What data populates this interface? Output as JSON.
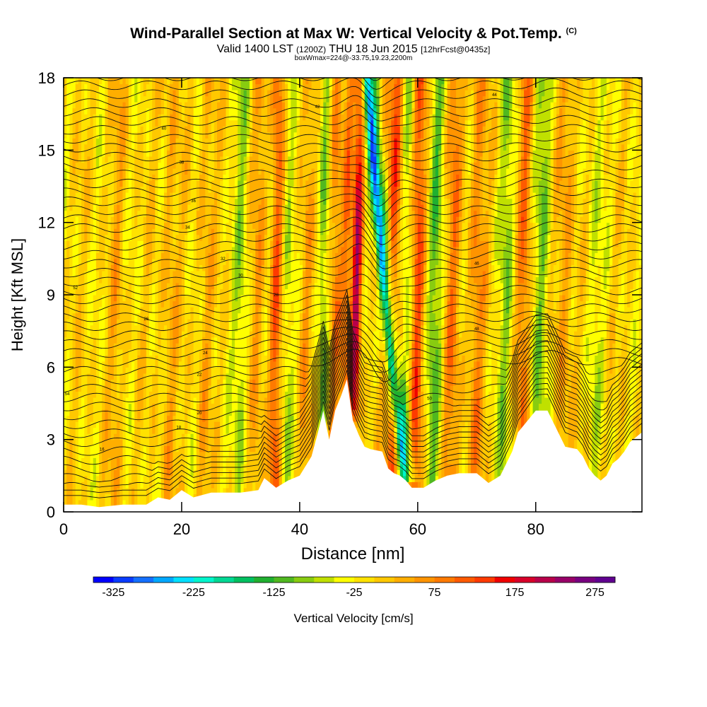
{
  "header": {
    "title": "Wind-Parallel Section at Max W: Vertical Velocity & Pot.Temp.",
    "copyright": "(C)",
    "valid_prefix": "Valid 1400 LST",
    "valid_utc": "(1200Z)",
    "valid_day": "THU 18 Jun 2015",
    "forecast": "[12hrFcst@0435z]",
    "box_info": "boxWmax=224@-33.75,19.23,2200m"
  },
  "chart_data": {
    "type": "heatmap",
    "title": "Wind-Parallel Section at Max W: Vertical Velocity & Pot.Temp.",
    "xlabel": "Distance [nm]",
    "ylabel": "Height [Kft MSL]",
    "xlim": [
      0,
      98
    ],
    "ylim": [
      0,
      18
    ],
    "x_ticks": [
      0,
      20,
      40,
      60,
      80
    ],
    "y_ticks": [
      0,
      3,
      6,
      9,
      12,
      15,
      18
    ],
    "colorbar": {
      "label": "Vertical Velocity [cm/s]",
      "min": -350,
      "max": 300,
      "step": 25,
      "tick_labels": [
        "-325",
        "-225",
        "-125",
        "-25",
        "75",
        "175",
        "275"
      ],
      "colors": [
        "#0000ff",
        "#0a3cff",
        "#1470ff",
        "#00a8ff",
        "#00e0ff",
        "#00f5cc",
        "#00d894",
        "#00c060",
        "#20b030",
        "#50b820",
        "#88cc10",
        "#c0e000",
        "#ffff00",
        "#ffe200",
        "#ffc800",
        "#ffae00",
        "#ff9400",
        "#ff7a00",
        "#ff5a00",
        "#ff3a00",
        "#f00000",
        "#d8002a",
        "#b8004a",
        "#980068",
        "#780080",
        "#600090"
      ]
    },
    "terrain_kft": [
      [
        0,
        0.3
      ],
      [
        3,
        0.3
      ],
      [
        6,
        0.2
      ],
      [
        10,
        0.3
      ],
      [
        14,
        0.3
      ],
      [
        16,
        0.6
      ],
      [
        18,
        0.5
      ],
      [
        20,
        0.9
      ],
      [
        22,
        0.6
      ],
      [
        25,
        0.8
      ],
      [
        30,
        0.8
      ],
      [
        33,
        0.9
      ],
      [
        34,
        1.4
      ],
      [
        36,
        1.0
      ],
      [
        38,
        1.3
      ],
      [
        40,
        1.5
      ],
      [
        42,
        2.3
      ],
      [
        43,
        3.2
      ],
      [
        44,
        4.2
      ],
      [
        45,
        3.0
      ],
      [
        46,
        4.2
      ],
      [
        47,
        4.8
      ],
      [
        48,
        5.5
      ],
      [
        49,
        3.8
      ],
      [
        50,
        3.2
      ],
      [
        51,
        2.7
      ],
      [
        52,
        2.6
      ],
      [
        54,
        2.5
      ],
      [
        55,
        1.8
      ],
      [
        56,
        1.6
      ],
      [
        57,
        1.5
      ],
      [
        58,
        1.3
      ],
      [
        59,
        1.0
      ],
      [
        61,
        1.0
      ],
      [
        63,
        1.3
      ],
      [
        65,
        1.5
      ],
      [
        67,
        1.6
      ],
      [
        70,
        1.6
      ],
      [
        72,
        1.2
      ],
      [
        74,
        1.5
      ],
      [
        76,
        2.5
      ],
      [
        77,
        3.3
      ],
      [
        78,
        3.6
      ],
      [
        80,
        4.2
      ],
      [
        82,
        4.2
      ],
      [
        84,
        3.2
      ],
      [
        85,
        2.7
      ],
      [
        87,
        2.6
      ],
      [
        88,
        2.3
      ],
      [
        89,
        1.8
      ],
      [
        90,
        1.5
      ],
      [
        91,
        1.3
      ],
      [
        92,
        1.5
      ],
      [
        93,
        2.0
      ],
      [
        94,
        2.2
      ],
      [
        95,
        2.5
      ],
      [
        96,
        2.9
      ],
      [
        98,
        3.3
      ]
    ],
    "updraft_axis": {
      "x_at_bottom": 49,
      "x_at_top": 50.3,
      "base_kft": 3.5,
      "peak_cm_s": 224
    },
    "downdraft_axis": {
      "x_at_bottom": 58,
      "x_at_top": 51.5,
      "base_kft": 1.5,
      "min_cm_s": -275
    },
    "theta_contour_labels": [
      {
        "x": 6.5,
        "y": 2.6,
        "text": "16"
      },
      {
        "x": 19.5,
        "y": 3.5,
        "text": "18"
      },
      {
        "x": 23,
        "y": 4.1,
        "text": "20"
      },
      {
        "x": 23,
        "y": 5.7,
        "text": "22"
      },
      {
        "x": 24,
        "y": 6.6,
        "text": "24"
      },
      {
        "x": 14,
        "y": 8.0,
        "text": "26"
      },
      {
        "x": 36,
        "y": 9.0,
        "text": "28"
      },
      {
        "x": 30,
        "y": 9.8,
        "text": "30"
      },
      {
        "x": 27,
        "y": 10.5,
        "text": "32"
      },
      {
        "x": 21,
        "y": 11.8,
        "text": "34"
      },
      {
        "x": 22,
        "y": 12.9,
        "text": "36"
      },
      {
        "x": 20,
        "y": 14.5,
        "text": "38"
      },
      {
        "x": 17,
        "y": 15.9,
        "text": "40"
      },
      {
        "x": 43,
        "y": 16.8,
        "text": "42"
      },
      {
        "x": 73,
        "y": 17.3,
        "text": "44"
      },
      {
        "x": 70,
        "y": 10.3,
        "text": "46"
      },
      {
        "x": 70,
        "y": 7.6,
        "text": "48"
      },
      {
        "x": 62,
        "y": 4.7,
        "text": "50"
      },
      {
        "x": 2,
        "y": 9.3,
        "text": "52"
      },
      {
        "x": 0.6,
        "y": 4.9,
        "text": "54"
      }
    ]
  }
}
